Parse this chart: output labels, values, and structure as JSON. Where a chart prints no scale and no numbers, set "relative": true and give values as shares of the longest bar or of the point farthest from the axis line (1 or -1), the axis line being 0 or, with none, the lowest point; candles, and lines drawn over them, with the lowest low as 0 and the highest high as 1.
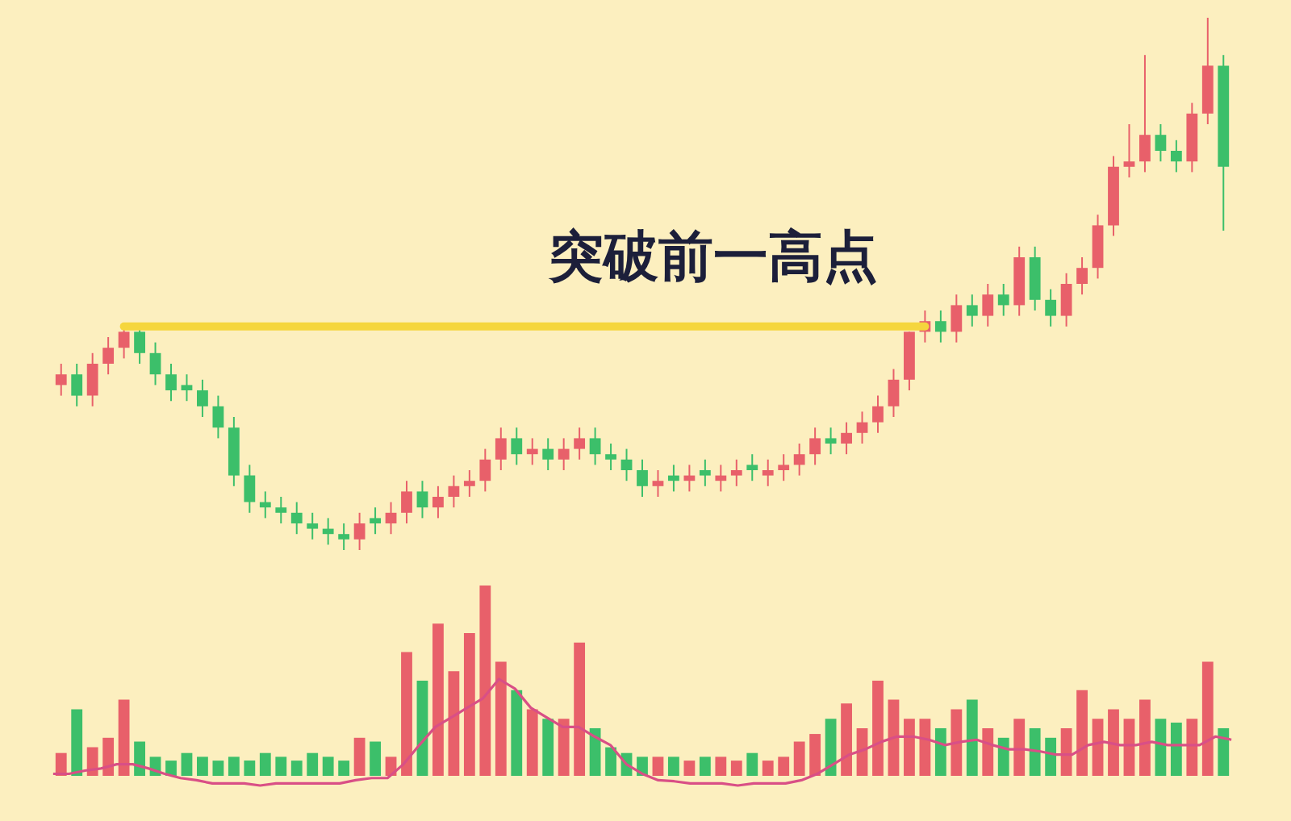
{
  "chart_data": [
    {
      "type": "candlestick",
      "relative": true,
      "categories": [
        null,
        null,
        null,
        null,
        null,
        null,
        null,
        null,
        null,
        null,
        null,
        null,
        null,
        null,
        null,
        null,
        null,
        null,
        null,
        null,
        null,
        null,
        null,
        null,
        null,
        null,
        null,
        null,
        null,
        null,
        null,
        null,
        null,
        null,
        null,
        null,
        null,
        null,
        null,
        null,
        null,
        null,
        null,
        null,
        null,
        null,
        null,
        null,
        null,
        null,
        null,
        null,
        null,
        null,
        null,
        null,
        null,
        null,
        null,
        null,
        null,
        null,
        null,
        null,
        null,
        null,
        null,
        null,
        null,
        null,
        null,
        null,
        null,
        null,
        null
      ],
      "ohlc": [
        [
          0.31,
          0.35,
          0.29,
          0.33
        ],
        [
          0.33,
          0.35,
          0.27,
          0.29
        ],
        [
          0.29,
          0.37,
          0.27,
          0.35
        ],
        [
          0.35,
          0.4,
          0.33,
          0.38
        ],
        [
          0.38,
          0.42,
          0.36,
          0.41
        ],
        [
          0.41,
          0.42,
          0.35,
          0.37
        ],
        [
          0.37,
          0.39,
          0.31,
          0.33
        ],
        [
          0.33,
          0.35,
          0.28,
          0.3
        ],
        [
          0.31,
          0.33,
          0.28,
          0.3
        ],
        [
          0.3,
          0.32,
          0.25,
          0.27
        ],
        [
          0.27,
          0.29,
          0.21,
          0.23
        ],
        [
          0.23,
          0.25,
          0.12,
          0.14
        ],
        [
          0.14,
          0.16,
          0.07,
          0.09
        ],
        [
          0.09,
          0.11,
          0.06,
          0.08
        ],
        [
          0.08,
          0.1,
          0.05,
          0.07
        ],
        [
          0.07,
          0.09,
          0.03,
          0.05
        ],
        [
          0.05,
          0.07,
          0.02,
          0.04
        ],
        [
          0.04,
          0.06,
          0.01,
          0.03
        ],
        [
          0.03,
          0.05,
          0.0,
          0.02
        ],
        [
          0.02,
          0.07,
          0.0,
          0.05
        ],
        [
          0.06,
          0.08,
          0.03,
          0.05
        ],
        [
          0.05,
          0.09,
          0.03,
          0.07
        ],
        [
          0.07,
          0.13,
          0.05,
          0.11
        ],
        [
          0.11,
          0.13,
          0.06,
          0.08
        ],
        [
          0.08,
          0.12,
          0.06,
          0.1
        ],
        [
          0.1,
          0.14,
          0.08,
          0.12
        ],
        [
          0.12,
          0.15,
          0.1,
          0.13
        ],
        [
          0.13,
          0.19,
          0.11,
          0.17
        ],
        [
          0.17,
          0.23,
          0.15,
          0.21
        ],
        [
          0.21,
          0.23,
          0.16,
          0.18
        ],
        [
          0.18,
          0.21,
          0.16,
          0.19
        ],
        [
          0.19,
          0.21,
          0.15,
          0.17
        ],
        [
          0.17,
          0.21,
          0.15,
          0.19
        ],
        [
          0.19,
          0.23,
          0.17,
          0.21
        ],
        [
          0.21,
          0.23,
          0.16,
          0.18
        ],
        [
          0.18,
          0.2,
          0.15,
          0.17
        ],
        [
          0.17,
          0.19,
          0.13,
          0.15
        ],
        [
          0.15,
          0.17,
          0.1,
          0.12
        ],
        [
          0.12,
          0.15,
          0.1,
          0.13
        ],
        [
          0.14,
          0.16,
          0.11,
          0.13
        ],
        [
          0.13,
          0.16,
          0.11,
          0.14
        ],
        [
          0.15,
          0.17,
          0.12,
          0.14
        ],
        [
          0.13,
          0.16,
          0.11,
          0.14
        ],
        [
          0.14,
          0.17,
          0.12,
          0.15
        ],
        [
          0.16,
          0.18,
          0.13,
          0.15
        ],
        [
          0.14,
          0.17,
          0.12,
          0.15
        ],
        [
          0.15,
          0.18,
          0.13,
          0.16
        ],
        [
          0.16,
          0.2,
          0.14,
          0.18
        ],
        [
          0.18,
          0.23,
          0.16,
          0.21
        ],
        [
          0.21,
          0.23,
          0.18,
          0.2
        ],
        [
          0.2,
          0.24,
          0.18,
          0.22
        ],
        [
          0.22,
          0.26,
          0.2,
          0.24
        ],
        [
          0.24,
          0.29,
          0.22,
          0.27
        ],
        [
          0.27,
          0.34,
          0.25,
          0.32
        ],
        [
          0.32,
          0.41,
          0.3,
          0.41
        ],
        [
          0.41,
          0.45,
          0.39,
          0.43
        ],
        [
          0.43,
          0.45,
          0.39,
          0.41
        ],
        [
          0.41,
          0.48,
          0.39,
          0.46
        ],
        [
          0.46,
          0.48,
          0.42,
          0.44
        ],
        [
          0.44,
          0.5,
          0.42,
          0.48
        ],
        [
          0.48,
          0.5,
          0.44,
          0.46
        ],
        [
          0.46,
          0.57,
          0.44,
          0.55
        ],
        [
          0.55,
          0.57,
          0.45,
          0.47
        ],
        [
          0.47,
          0.49,
          0.42,
          0.44
        ],
        [
          0.44,
          0.52,
          0.42,
          0.5
        ],
        [
          0.5,
          0.55,
          0.48,
          0.53
        ],
        [
          0.53,
          0.63,
          0.51,
          0.61
        ],
        [
          0.61,
          0.74,
          0.59,
          0.72
        ],
        [
          0.72,
          0.8,
          0.7,
          0.73
        ],
        [
          0.73,
          0.93,
          0.71,
          0.78
        ],
        [
          0.78,
          0.8,
          0.73,
          0.75
        ],
        [
          0.75,
          0.77,
          0.71,
          0.73
        ],
        [
          0.73,
          0.84,
          0.71,
          0.82
        ],
        [
          0.82,
          1.0,
          0.8,
          0.91
        ],
        [
          0.91,
          0.93,
          0.6,
          0.72
        ]
      ],
      "colors": [
        "#e8606a",
        "#3cbf6a",
        "#e8606a",
        "#e8606a",
        "#e8606a",
        "#3cbf6a",
        "#3cbf6a",
        "#3cbf6a",
        "#3cbf6a",
        "#3cbf6a",
        "#3cbf6a",
        "#3cbf6a",
        "#3cbf6a",
        "#3cbf6a",
        "#3cbf6a",
        "#3cbf6a",
        "#3cbf6a",
        "#3cbf6a",
        "#3cbf6a",
        "#e8606a",
        "#3cbf6a",
        "#e8606a",
        "#e8606a",
        "#3cbf6a",
        "#e8606a",
        "#e8606a",
        "#e8606a",
        "#e8606a",
        "#e8606a",
        "#3cbf6a",
        "#e8606a",
        "#3cbf6a",
        "#e8606a",
        "#e8606a",
        "#3cbf6a",
        "#3cbf6a",
        "#3cbf6a",
        "#3cbf6a",
        "#e8606a",
        "#3cbf6a",
        "#e8606a",
        "#3cbf6a",
        "#e8606a",
        "#e8606a",
        "#3cbf6a",
        "#e8606a",
        "#e8606a",
        "#e8606a",
        "#e8606a",
        "#3cbf6a",
        "#e8606a",
        "#e8606a",
        "#e8606a",
        "#e8606a",
        "#e8606a",
        "#e8606a",
        "#3cbf6a",
        "#e8606a",
        "#3cbf6a",
        "#e8606a",
        "#3cbf6a",
        "#e8606a",
        "#3cbf6a",
        "#3cbf6a",
        "#e8606a",
        "#e8606a",
        "#e8606a",
        "#e8606a",
        "#e8606a",
        "#e8606a",
        "#3cbf6a",
        "#3cbf6a",
        "#e8606a",
        "#e8606a",
        "#3cbf6a"
      ],
      "ref_lines": [
        {
          "axis": "y",
          "value": 0.42,
          "label": "突破前一高点",
          "color": "#f5d63d"
        }
      ]
    },
    {
      "type": "bar",
      "relative": true,
      "categories": [
        null,
        null,
        null,
        null,
        null,
        null,
        null,
        null,
        null,
        null,
        null,
        null,
        null,
        null,
        null,
        null,
        null,
        null,
        null,
        null,
        null,
        null,
        null,
        null,
        null,
        null,
        null,
        null,
        null,
        null,
        null,
        null,
        null,
        null,
        null,
        null,
        null,
        null,
        null,
        null,
        null,
        null,
        null,
        null,
        null,
        null,
        null,
        null,
        null,
        null,
        null,
        null,
        null,
        null,
        null,
        null,
        null,
        null,
        null,
        null,
        null,
        null,
        null,
        null,
        null,
        null,
        null,
        null,
        null,
        null,
        null,
        null,
        null,
        null,
        null
      ],
      "colors": [
        "#e8606a",
        "#3cbf6a",
        "#e8606a",
        "#e8606a",
        "#e8606a",
        "#3cbf6a",
        "#3cbf6a",
        "#3cbf6a",
        "#3cbf6a",
        "#3cbf6a",
        "#3cbf6a",
        "#3cbf6a",
        "#3cbf6a",
        "#3cbf6a",
        "#3cbf6a",
        "#3cbf6a",
        "#3cbf6a",
        "#3cbf6a",
        "#3cbf6a",
        "#e8606a",
        "#3cbf6a",
        "#e8606a",
        "#e8606a",
        "#3cbf6a",
        "#e8606a",
        "#e8606a",
        "#e8606a",
        "#e8606a",
        "#e8606a",
        "#3cbf6a",
        "#e8606a",
        "#3cbf6a",
        "#e8606a",
        "#e8606a",
        "#3cbf6a",
        "#3cbf6a",
        "#3cbf6a",
        "#3cbf6a",
        "#e8606a",
        "#3cbf6a",
        "#e8606a",
        "#3cbf6a",
        "#e8606a",
        "#e8606a",
        "#3cbf6a",
        "#e8606a",
        "#e8606a",
        "#e8606a",
        "#e8606a",
        "#3cbf6a",
        "#e8606a",
        "#e8606a",
        "#e8606a",
        "#e8606a",
        "#e8606a",
        "#e8606a",
        "#3cbf6a",
        "#e8606a",
        "#3cbf6a",
        "#e8606a",
        "#3cbf6a",
        "#e8606a",
        "#3cbf6a",
        "#3cbf6a",
        "#e8606a",
        "#e8606a",
        "#e8606a",
        "#e8606a",
        "#e8606a",
        "#e8606a",
        "#3cbf6a",
        "#3cbf6a",
        "#e8606a",
        "#e8606a",
        "#3cbf6a"
      ],
      "values": [
        0.12,
        0.35,
        0.15,
        0.2,
        0.4,
        0.18,
        0.1,
        0.08,
        0.12,
        0.1,
        0.08,
        0.1,
        0.08,
        0.12,
        0.1,
        0.08,
        0.12,
        0.1,
        0.08,
        0.2,
        0.18,
        0.1,
        0.65,
        0.5,
        0.8,
        0.55,
        0.75,
        1.0,
        0.6,
        0.45,
        0.35,
        0.3,
        0.3,
        0.7,
        0.25,
        0.15,
        0.12,
        0.1,
        0.1,
        0.1,
        0.08,
        0.1,
        0.1,
        0.08,
        0.12,
        0.08,
        0.1,
        0.18,
        0.22,
        0.3,
        0.38,
        0.25,
        0.5,
        0.4,
        0.3,
        0.3,
        0.25,
        0.35,
        0.4,
        0.25,
        0.2,
        0.3,
        0.25,
        0.2,
        0.25,
        0.45,
        0.3,
        0.35,
        0.3,
        0.4,
        0.3,
        0.28,
        0.3,
        0.6,
        0.25
      ]
    },
    {
      "type": "line",
      "relative": true,
      "color": "#d94f86",
      "categories": [
        null,
        null,
        null,
        null,
        null,
        null,
        null,
        null,
        null,
        null,
        null,
        null,
        null,
        null,
        null,
        null,
        null,
        null,
        null,
        null,
        null,
        null,
        null,
        null,
        null,
        null,
        null,
        null,
        null,
        null,
        null,
        null,
        null,
        null,
        null,
        null,
        null,
        null,
        null,
        null,
        null,
        null,
        null,
        null,
        null,
        null,
        null,
        null,
        null,
        null,
        null,
        null,
        null,
        null,
        null,
        null,
        null,
        null,
        null,
        null,
        null,
        null,
        null,
        null,
        null,
        null,
        null,
        null,
        null,
        null,
        null,
        null,
        null,
        null,
        null
      ],
      "values": [
        0.11,
        0.11,
        0.14,
        0.16,
        0.2,
        0.2,
        0.16,
        0.11,
        0.07,
        0.05,
        0.02,
        0.02,
        0.02,
        0,
        0.02,
        0.02,
        0.02,
        0.02,
        0.02,
        0.05,
        0.07,
        0.07,
        0.2,
        0.38,
        0.55,
        0.64,
        0.73,
        0.82,
        1,
        0.91,
        0.73,
        0.64,
        0.55,
        0.55,
        0.46,
        0.38,
        0.2,
        0.11,
        0.05,
        0.04,
        0.02,
        0.02,
        0.02,
        0,
        0.02,
        0.02,
        0.02,
        0.05,
        0.11,
        0.2,
        0.29,
        0.34,
        0.41,
        0.46,
        0.46,
        0.43,
        0.38,
        0.41,
        0.43,
        0.38,
        0.34,
        0.34,
        0.32,
        0.29,
        0.29,
        0.38,
        0.41,
        0.38,
        0.38,
        0.41,
        0.38,
        0.38,
        0.38,
        0.46,
        0.43
      ]
    }
  ]
}
